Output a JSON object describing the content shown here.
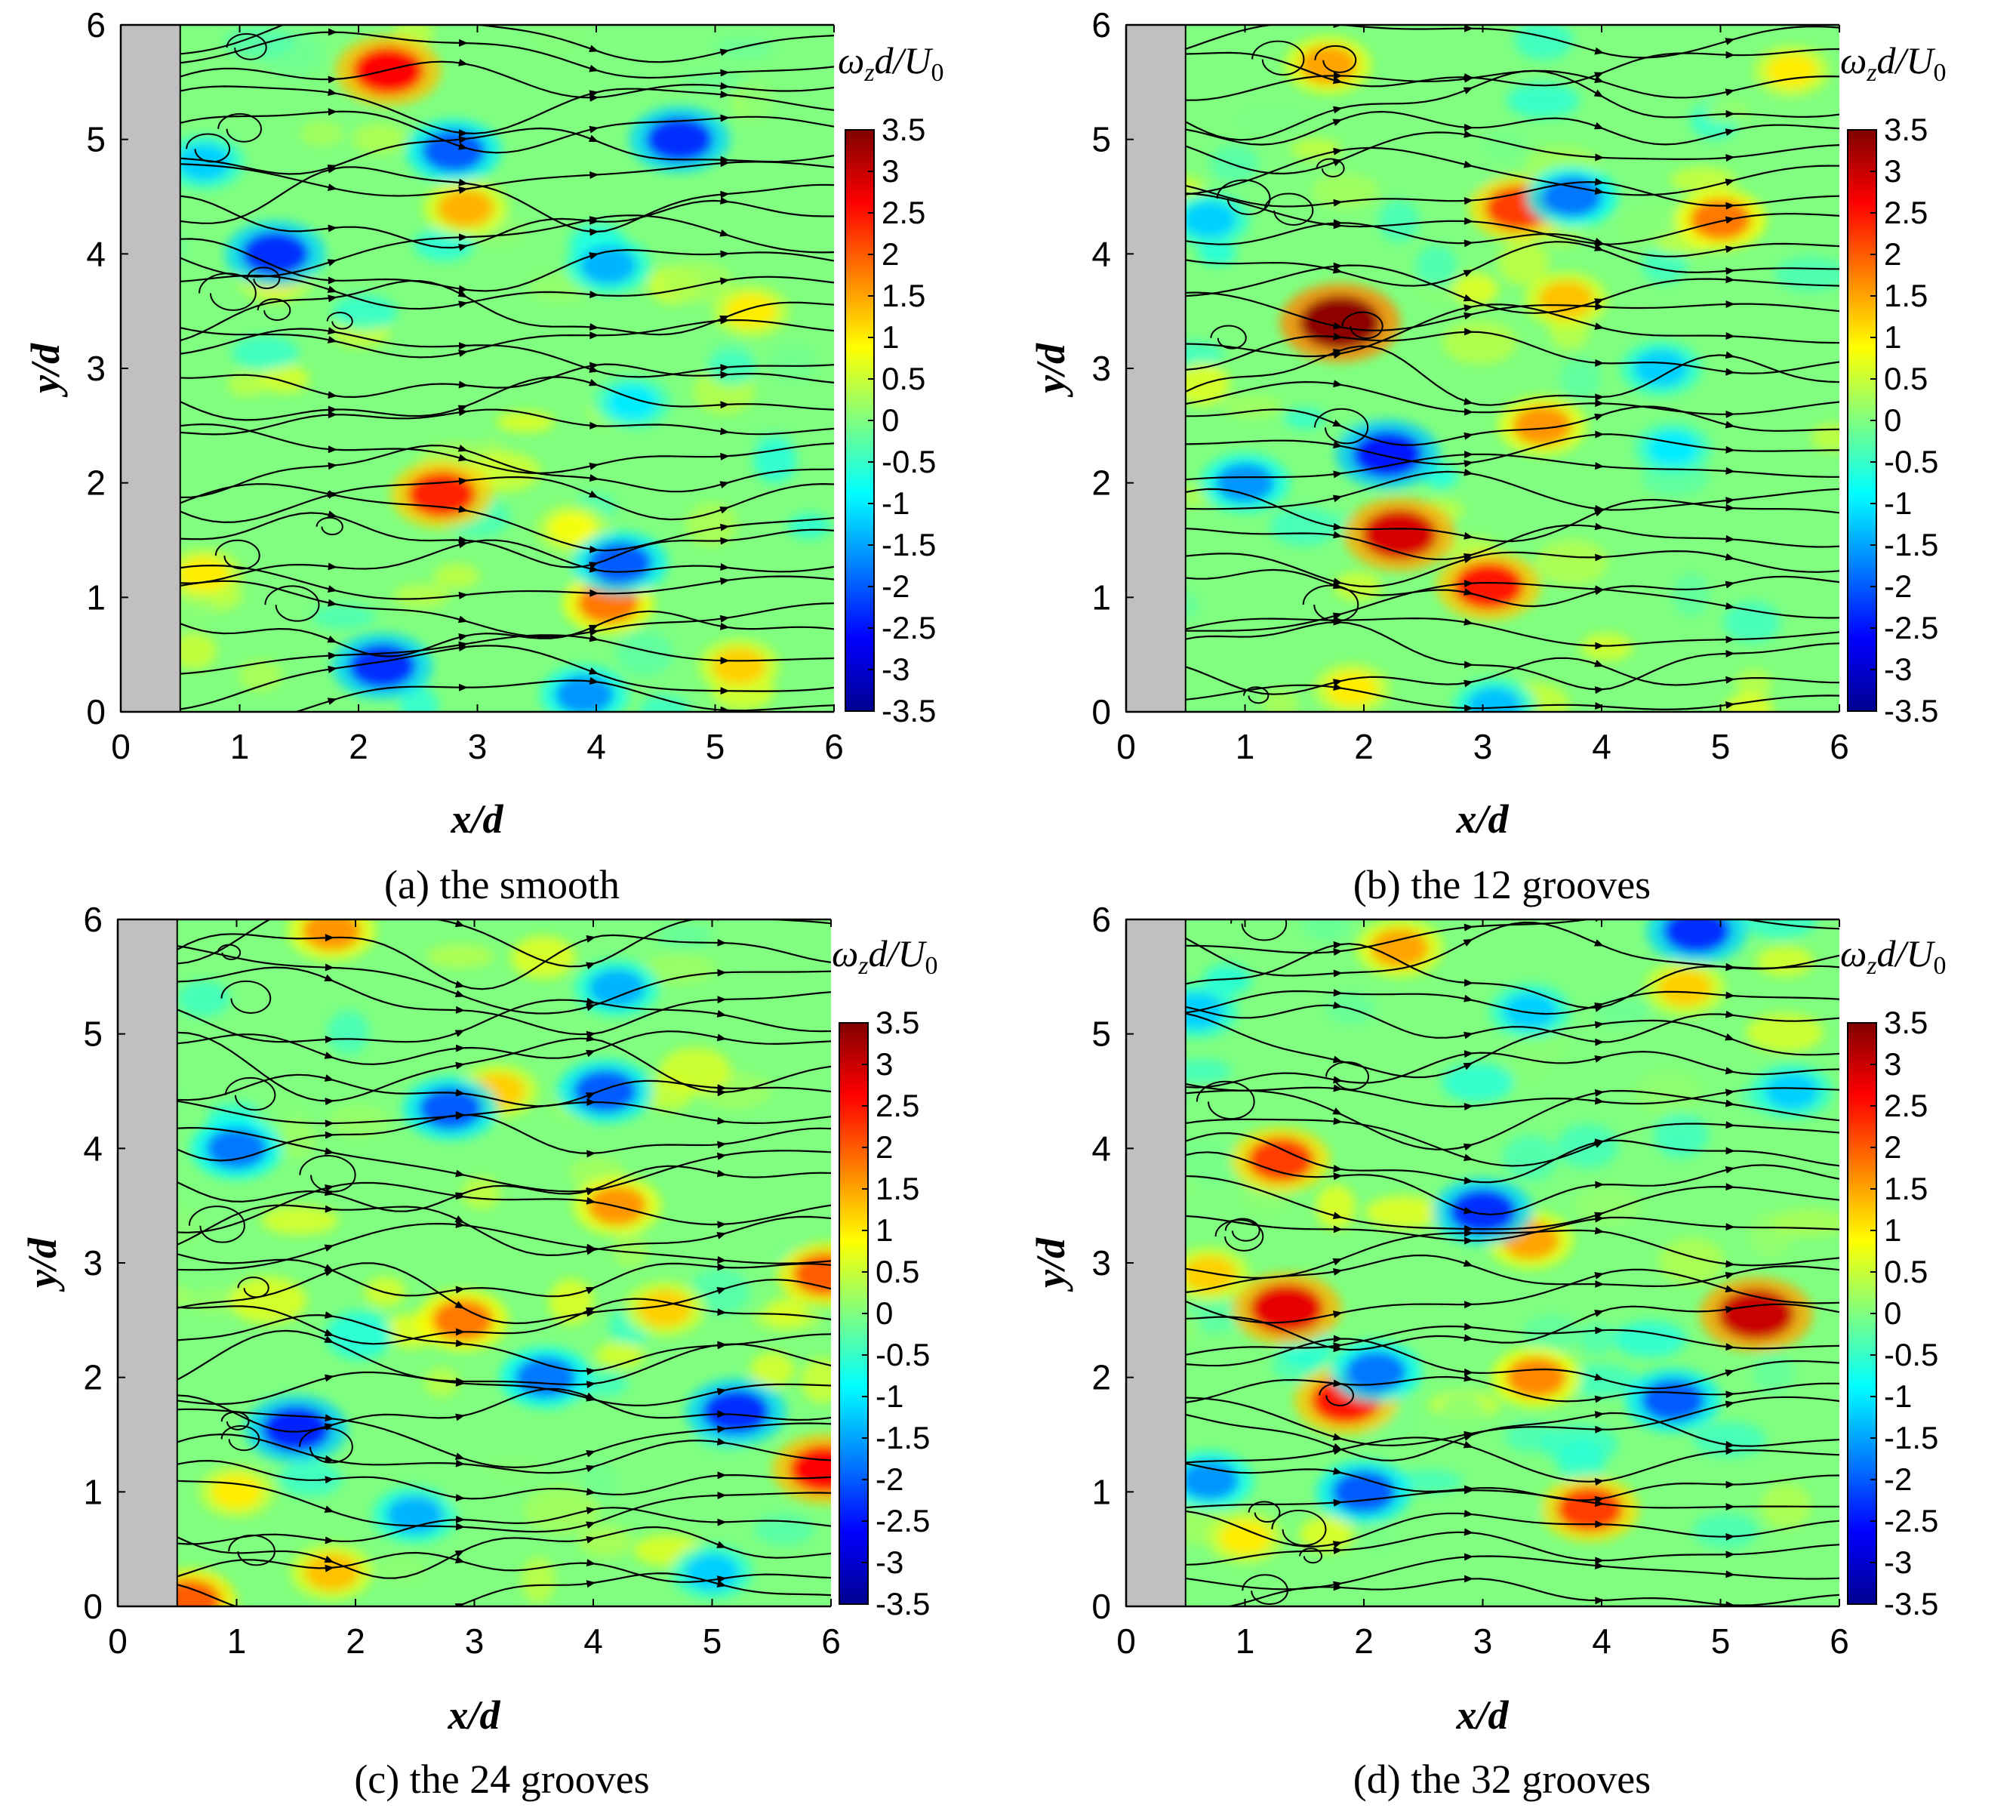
{
  "figure": {
    "panels": [
      {
        "caption": "(a) the smooth",
        "chart_data": {
          "type": "heatmap",
          "subtype": "vorticity contour with streamlines",
          "xlabel": "x/d",
          "ylabel": "y/d",
          "xlim": [
            0,
            6
          ],
          "ylim": [
            0,
            6
          ],
          "xticks": [
            "0",
            "1",
            "2",
            "3",
            "4",
            "5",
            "6"
          ],
          "yticks": [
            "0",
            "1",
            "2",
            "3",
            "4",
            "5",
            "6"
          ],
          "colorbar": {
            "label": "ω_z d/U_0",
            "range": [
              -3.5,
              3.5
            ],
            "ticks": [
              "3.5",
              "3",
              "2.5",
              "2",
              "1.5",
              "1",
              "0.5",
              "0",
              "-0.5",
              "-1",
              "-1.5",
              "-2",
              "-2.5",
              "-3",
              "-3.5"
            ]
          },
          "body_extent_x": [
            0,
            0.5
          ],
          "vortices": [
            {
              "x": 2.25,
              "y": 5.6,
              "w": 2.6
            },
            {
              "x": 2.9,
              "y": 4.4,
              "w": 1.4
            },
            {
              "x": 2.7,
              "y": 1.9,
              "w": 2.4
            },
            {
              "x": 4.1,
              "y": 0.95,
              "w": 1.8
            },
            {
              "x": 5.2,
              "y": 0.4,
              "w": 1.2
            },
            {
              "x": 1.3,
              "y": 3.8,
              "w": 1.0
            },
            {
              "x": 5.3,
              "y": 3.5,
              "w": 1.0
            },
            {
              "x": 3.8,
              "y": 1.6,
              "w": 0.8
            },
            {
              "x": 0.7,
              "y": 1.2,
              "w": 1.0
            },
            {
              "x": 1.3,
              "y": 4.0,
              "w": -2.3
            },
            {
              "x": 2.8,
              "y": 4.9,
              "w": -2.0
            },
            {
              "x": 4.7,
              "y": 5.0,
              "w": -2.3
            },
            {
              "x": 2.2,
              "y": 0.4,
              "w": -2.3
            },
            {
              "x": 4.2,
              "y": 1.3,
              "w": -2.0
            },
            {
              "x": 3.9,
              "y": 0.15,
              "w": -1.6
            },
            {
              "x": 4.1,
              "y": 3.9,
              "w": -1.4
            },
            {
              "x": 0.7,
              "y": 4.8,
              "w": -1.2
            },
            {
              "x": 4.3,
              "y": 2.7,
              "w": -1.0
            }
          ]
        }
      },
      {
        "caption": "(b) the 12 grooves",
        "chart_data": {
          "type": "heatmap",
          "subtype": "vorticity contour with streamlines",
          "xlabel": "x/d",
          "ylabel": "y/d",
          "xlim": [
            0,
            6
          ],
          "ylim": [
            0,
            6
          ],
          "xticks": [
            "0",
            "1",
            "2",
            "3",
            "4",
            "5",
            "6"
          ],
          "yticks": [
            "0",
            "1",
            "2",
            "3",
            "4",
            "5",
            "6"
          ],
          "colorbar": {
            "label": "ω_z d/U_0",
            "range": [
              -3.5,
              3.5
            ],
            "ticks": [
              "3.5",
              "3",
              "2.5",
              "2",
              "1.5",
              "1",
              "0.5",
              "0",
              "-0.5",
              "-1",
              "-1.5",
              "-2",
              "-2.5",
              "-3",
              "-3.5"
            ]
          },
          "body_extent_x": [
            0,
            0.5
          ],
          "vortices": [
            {
              "x": 1.8,
              "y": 3.4,
              "w": 3.4
            },
            {
              "x": 2.3,
              "y": 1.55,
              "w": 2.9
            },
            {
              "x": 3.05,
              "y": 1.1,
              "w": 2.5
            },
            {
              "x": 3.3,
              "y": 4.4,
              "w": 2.2
            },
            {
              "x": 5.0,
              "y": 4.3,
              "w": 1.8
            },
            {
              "x": 1.7,
              "y": 5.65,
              "w": 1.5
            },
            {
              "x": 3.5,
              "y": 2.5,
              "w": 1.6
            },
            {
              "x": 3.7,
              "y": 3.6,
              "w": 1.3
            },
            {
              "x": 5.6,
              "y": 5.6,
              "w": 1.0
            },
            {
              "x": 1.9,
              "y": 0.2,
              "w": 1.0
            },
            {
              "x": 2.2,
              "y": 2.25,
              "w": -2.5
            },
            {
              "x": 3.75,
              "y": 4.5,
              "w": -1.8
            },
            {
              "x": 1.0,
              "y": 2.0,
              "w": -1.6
            },
            {
              "x": 4.5,
              "y": 3.0,
              "w": -1.2
            },
            {
              "x": 3.1,
              "y": 0.05,
              "w": -1.3
            },
            {
              "x": 0.7,
              "y": 4.3,
              "w": -1.2
            },
            {
              "x": 4.6,
              "y": 2.3,
              "w": -1.0
            }
          ]
        }
      },
      {
        "caption": "(c) the 24 grooves",
        "chart_data": {
          "type": "heatmap",
          "subtype": "vorticity contour with streamlines",
          "xlabel": "x/d",
          "ylabel": "y/d",
          "xlim": [
            0,
            6
          ],
          "ylim": [
            0,
            6
          ],
          "xticks": [
            "0",
            "1",
            "2",
            "3",
            "4",
            "5",
            "6"
          ],
          "yticks": [
            "0",
            "1",
            "2",
            "3",
            "4",
            "5",
            "6"
          ],
          "colorbar": {
            "label": "ω_z d/U_0",
            "range": [
              -3.5,
              3.5
            ],
            "ticks": [
              "3.5",
              "3",
              "2.5",
              "2",
              "1.5",
              "1",
              "0.5",
              "0",
              "-0.5",
              "-1",
              "-1.5",
              "-2",
              "-2.5",
              "-3",
              "-3.5"
            ]
          },
          "body_extent_x": [
            0,
            0.5
          ],
          "vortices": [
            {
              "x": 5.95,
              "y": 1.2,
              "w": 2.6
            },
            {
              "x": 5.95,
              "y": 2.9,
              "w": 2.0
            },
            {
              "x": 2.9,
              "y": 2.5,
              "w": 1.8
            },
            {
              "x": 4.2,
              "y": 3.5,
              "w": 1.6
            },
            {
              "x": 1.8,
              "y": 5.9,
              "w": 1.6
            },
            {
              "x": 0.6,
              "y": 0.05,
              "w": 2.0
            },
            {
              "x": 1.8,
              "y": 0.3,
              "w": 1.3
            },
            {
              "x": 3.2,
              "y": 4.5,
              "w": 1.2
            },
            {
              "x": 4.6,
              "y": 2.6,
              "w": 1.2
            },
            {
              "x": 1.0,
              "y": 1.0,
              "w": 1.0
            },
            {
              "x": 1.5,
              "y": 1.55,
              "w": -2.4
            },
            {
              "x": 5.2,
              "y": 1.7,
              "w": -2.3
            },
            {
              "x": 2.8,
              "y": 4.35,
              "w": -2.0
            },
            {
              "x": 4.1,
              "y": 4.5,
              "w": -2.0
            },
            {
              "x": 3.6,
              "y": 2.0,
              "w": -1.8
            },
            {
              "x": 1.0,
              "y": 4.0,
              "w": -1.8
            },
            {
              "x": 4.2,
              "y": 5.4,
              "w": -1.4
            },
            {
              "x": 2.5,
              "y": 0.8,
              "w": -1.4
            },
            {
              "x": 5.0,
              "y": 0.3,
              "w": -1.2
            }
          ]
        }
      },
      {
        "caption": "(d) the 32 grooves",
        "chart_data": {
          "type": "heatmap",
          "subtype": "vorticity contour with streamlines",
          "xlabel": "x/d",
          "ylabel": "y/d",
          "xlim": [
            0,
            6
          ],
          "ylim": [
            0,
            6
          ],
          "xticks": [
            "0",
            "1",
            "2",
            "3",
            "4",
            "5",
            "6"
          ],
          "yticks": [
            "0",
            "1",
            "2",
            "3",
            "4",
            "5",
            "6"
          ],
          "colorbar": {
            "label": "ω_z d/U_0",
            "range": [
              -3.5,
              3.5
            ],
            "ticks": [
              "3.5",
              "3",
              "2.5",
              "2",
              "1.5",
              "1",
              "0.5",
              "0",
              "-0.5",
              "-1",
              "-1.5",
              "-2",
              "-2.5",
              "-3",
              "-3.5"
            ]
          },
          "body_extent_x": [
            0,
            0.5
          ],
          "vortices": [
            {
              "x": 5.3,
              "y": 2.55,
              "w": 3.0
            },
            {
              "x": 1.35,
              "y": 2.6,
              "w": 2.8
            },
            {
              "x": 1.85,
              "y": 1.8,
              "w": 2.5
            },
            {
              "x": 3.9,
              "y": 0.85,
              "w": 2.2
            },
            {
              "x": 1.3,
              "y": 3.9,
              "w": 2.2
            },
            {
              "x": 3.45,
              "y": 2.0,
              "w": 1.7
            },
            {
              "x": 3.4,
              "y": 3.2,
              "w": 1.5
            },
            {
              "x": 2.3,
              "y": 5.75,
              "w": 1.5
            },
            {
              "x": 4.7,
              "y": 5.4,
              "w": 1.2
            },
            {
              "x": 0.7,
              "y": 2.9,
              "w": 1.2
            },
            {
              "x": 1.0,
              "y": 0.6,
              "w": 1.0
            },
            {
              "x": 3.0,
              "y": 3.45,
              "w": -2.3
            },
            {
              "x": 4.8,
              "y": 5.9,
              "w": -2.3
            },
            {
              "x": 4.6,
              "y": 1.8,
              "w": -2.0
            },
            {
              "x": 2.0,
              "y": 1.0,
              "w": -2.0
            },
            {
              "x": 2.1,
              "y": 2.05,
              "w": -1.8
            },
            {
              "x": 0.7,
              "y": 1.1,
              "w": -1.6
            },
            {
              "x": 5.6,
              "y": 4.5,
              "w": -1.2
            },
            {
              "x": 3.4,
              "y": 5.2,
              "w": -1.2
            },
            {
              "x": 0.6,
              "y": 5.2,
              "w": -1.2
            }
          ]
        }
      }
    ]
  }
}
